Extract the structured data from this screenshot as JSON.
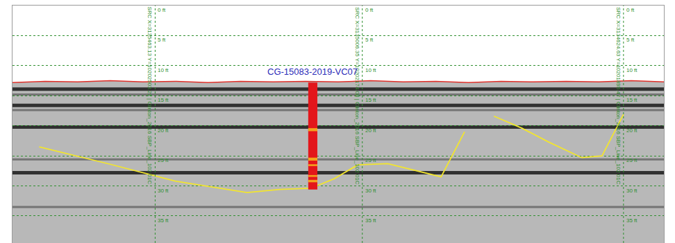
{
  "chart_data": {
    "type": "profile",
    "xlim": [
      0,
      100
    ],
    "ylim": [
      39.5,
      0
    ],
    "yticks": [
      {
        "value": 0,
        "label": "0 ft"
      },
      {
        "value": 5,
        "label": "5 ft"
      },
      {
        "value": 10,
        "label": "10 ft"
      },
      {
        "value": 15,
        "label": "15 ft"
      },
      {
        "value": 20,
        "label": "20 ft"
      },
      {
        "value": 25,
        "label": "25 ft"
      },
      {
        "value": 30,
        "label": "30 ft"
      },
      {
        "value": 35,
        "label": "35 ft"
      }
    ],
    "grid": true,
    "tick_labels": false,
    "line_markers": [
      {
        "x": 21.9,
        "label": "SRC X=3135463.13 Y=10202503.21 | Clinton_2016 SBP_Line_102 01C"
      },
      {
        "x": 53.7,
        "label": "SRC X=3135006.35 Y=10202174.08 | Clinton_2016 SBP_Line_102 01C"
      },
      {
        "x": 93.8,
        "label": "SRC X=3134624.63 Y=10201895.47 | Clinton_2016 SBP_Line_102 01C"
      }
    ],
    "seabed": {
      "color": "#e0302a",
      "x": [
        0,
        5,
        10,
        15,
        20,
        25,
        30,
        35,
        40,
        45,
        50,
        55,
        60,
        65,
        70,
        75,
        80,
        85,
        90,
        95,
        100
      ],
      "y": [
        12.8,
        12.6,
        12.7,
        12.5,
        12.7,
        12.6,
        12.8,
        12.6,
        12.7,
        12.6,
        12.7,
        12.5,
        12.7,
        12.6,
        12.8,
        12.6,
        12.7,
        12.6,
        12.7,
        12.5,
        12.7
      ]
    },
    "reflectors": [
      13.9,
      14.8,
      16.6,
      17.4,
      20.2,
      25.6,
      27.8,
      33.5
    ],
    "horizons": [
      {
        "color": "#f2e52e",
        "x": [
          4.1,
          15.0,
          25.0,
          36.0,
          41.0,
          45.8,
          49.4,
          53.0,
          57.6,
          65.8,
          69.4
        ],
        "y": [
          23.5,
          26.4,
          29.2,
          31.1,
          30.6,
          30.4,
          28.8,
          26.5,
          26.3,
          28.5,
          21.0
        ]
      },
      {
        "color": "#f2e52e",
        "x": [
          73.9,
          78.2,
          82.3,
          87.4,
          90.5,
          93.8
        ],
        "y": [
          18.4,
          20.4,
          22.7,
          25.3,
          25.0,
          18.1
        ]
      }
    ],
    "core": {
      "label": "CG-15083-2019-VC07",
      "label_color": "#2b2bb8",
      "x": 46.1,
      "top": 12.8,
      "bottom": 30.6,
      "color": "#e3161b",
      "bands": [
        {
          "top": 20.4,
          "bottom": 20.9,
          "color": "#f4a21e"
        },
        {
          "top": 25.3,
          "bottom": 25.8,
          "color": "#f4a21e"
        },
        {
          "top": 26.4,
          "bottom": 26.7,
          "color": "#f4a21e"
        },
        {
          "top": 28.2,
          "bottom": 28.5,
          "color": "#f4a21e"
        },
        {
          "top": 29.0,
          "bottom": 29.4,
          "color": "#f4a21e"
        }
      ]
    }
  }
}
